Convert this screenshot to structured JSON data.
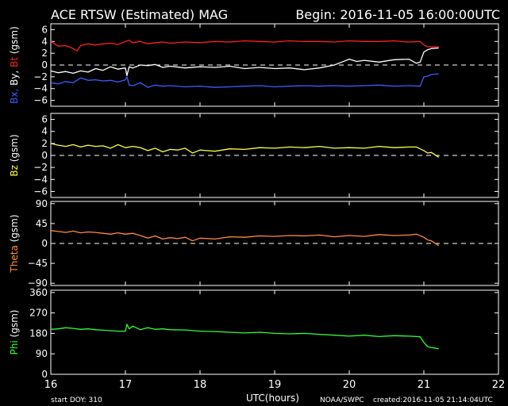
{
  "header": {
    "title": "ACE RTSW (Estimated) MAG",
    "begin": "Begin: 2016-11-05 16:00:00UTC"
  },
  "footer": {
    "start_doy": "start DOY:  310",
    "xlabel": "UTC(hours)",
    "credit": "NOAA/SWPC",
    "created": "created:2016-11-05 21:14:04UTC"
  },
  "x_axis": {
    "range": [
      16,
      22
    ],
    "ticks": [
      16,
      17,
      18,
      19,
      20,
      21,
      22
    ]
  },
  "colors": {
    "background": "#000000",
    "frame": "#ffffff",
    "bx": "#3b5bff",
    "by": "#ffffff",
    "bt": "#ff2020",
    "bz": "#ffff40",
    "theta": "#ff8c3c",
    "phi": "#30ff30"
  },
  "panels": [
    {
      "id": "b",
      "ylabel_parts": [
        {
          "text": "Bx,",
          "color": "#3b5bff"
        },
        {
          "text": " By,",
          "color": "#ffffff"
        },
        {
          "text": " Bt",
          "color": "#ff2020"
        },
        {
          "text": " (gsm)",
          "color": "#ffffff"
        }
      ],
      "ylim": [
        -7,
        7
      ],
      "yticks": [
        6,
        4,
        2,
        0,
        -2,
        -4,
        -6
      ],
      "zero_line": true
    },
    {
      "id": "bz",
      "ylabel_parts": [
        {
          "text": "Bz",
          "color": "#ffff40"
        },
        {
          "text": "  (gsm)",
          "color": "#ffffff"
        }
      ],
      "ylim": [
        -7,
        7
      ],
      "yticks": [
        6,
        4,
        2,
        0,
        -2,
        -4,
        -6
      ],
      "zero_line": true
    },
    {
      "id": "theta",
      "ylabel_parts": [
        {
          "text": "Theta",
          "color": "#ff8c3c"
        },
        {
          "text": "  (gsm)",
          "color": "#ffffff"
        }
      ],
      "ylim": [
        -95,
        95
      ],
      "yticks": [
        90,
        45,
        0,
        -45,
        -90
      ],
      "zero_line": true
    },
    {
      "id": "phi",
      "ylabel_parts": [
        {
          "text": "Phi",
          "color": "#30ff30"
        },
        {
          "text": "  (gsm)",
          "color": "#ffffff"
        }
      ],
      "ylim": [
        0,
        370
      ],
      "yticks": [
        360,
        270,
        180,
        90,
        0
      ],
      "zero_line": false
    }
  ],
  "chart_data": {
    "type": "line",
    "x_unit": "UTC hours",
    "xlim": [
      16,
      22
    ],
    "series": [
      {
        "name": "Bt",
        "panel": "b",
        "color": "#ff2020",
        "x": [
          16.0,
          16.1,
          16.2,
          16.3,
          16.35,
          16.4,
          16.5,
          16.6,
          16.7,
          16.8,
          16.9,
          17.0,
          17.05,
          17.1,
          17.2,
          17.3,
          17.4,
          17.5,
          17.6,
          17.8,
          18.0,
          18.2,
          18.4,
          18.6,
          18.8,
          19.0,
          19.2,
          19.4,
          19.6,
          19.8,
          20.0,
          20.2,
          20.4,
          20.6,
          20.8,
          20.95,
          21.0,
          21.05,
          21.1,
          21.2
        ],
        "y": [
          4.0,
          3.2,
          3.3,
          2.8,
          2.4,
          3.3,
          3.6,
          3.4,
          3.6,
          3.7,
          3.5,
          4.0,
          4.2,
          3.8,
          4.0,
          3.6,
          3.8,
          3.9,
          3.7,
          3.9,
          3.8,
          4.0,
          3.9,
          4.1,
          4.0,
          3.9,
          4.1,
          4.0,
          4.0,
          3.9,
          4.1,
          4.0,
          4.0,
          4.1,
          3.9,
          4.0,
          3.4,
          3.1,
          3.1,
          3.1
        ]
      },
      {
        "name": "By",
        "panel": "b",
        "color": "#ffffff",
        "x": [
          16.0,
          16.1,
          16.2,
          16.3,
          16.4,
          16.5,
          16.6,
          16.7,
          16.8,
          16.9,
          17.0,
          17.02,
          17.05,
          17.1,
          17.2,
          17.3,
          17.4,
          17.5,
          17.6,
          17.8,
          18.0,
          18.2,
          18.4,
          18.6,
          18.8,
          19.0,
          19.2,
          19.4,
          19.6,
          19.8,
          19.9,
          20.0,
          20.1,
          20.2,
          20.4,
          20.6,
          20.8,
          20.9,
          20.95,
          21.0,
          21.05,
          21.1,
          21.2
        ],
        "y": [
          -1.0,
          -1.3,
          -1.1,
          -1.4,
          -1.0,
          -1.2,
          -0.6,
          -0.9,
          -0.3,
          -0.7,
          -0.5,
          -1.8,
          -0.3,
          -0.5,
          0.0,
          -0.1,
          0.1,
          -0.4,
          -0.2,
          -0.5,
          -0.3,
          -0.4,
          -0.2,
          -0.6,
          -0.4,
          -0.6,
          -0.5,
          -0.8,
          -0.5,
          0.0,
          0.5,
          1.0,
          0.6,
          0.8,
          0.5,
          0.9,
          1.0,
          0.3,
          0.5,
          2.2,
          2.6,
          2.8,
          2.9
        ]
      },
      {
        "name": "Bx",
        "panel": "b",
        "color": "#3b5bff",
        "x": [
          16.0,
          16.1,
          16.2,
          16.3,
          16.4,
          16.5,
          16.6,
          16.7,
          16.8,
          16.9,
          17.0,
          17.02,
          17.05,
          17.1,
          17.2,
          17.3,
          17.4,
          17.5,
          17.6,
          17.8,
          18.0,
          18.2,
          18.4,
          18.6,
          18.8,
          19.0,
          19.2,
          19.4,
          19.6,
          19.8,
          20.0,
          20.2,
          20.4,
          20.6,
          20.8,
          20.95,
          21.0,
          21.05,
          21.1,
          21.2
        ],
        "y": [
          -3.0,
          -3.2,
          -2.8,
          -3.0,
          -2.2,
          -2.6,
          -2.5,
          -2.7,
          -2.6,
          -2.9,
          -2.5,
          -2.0,
          -3.4,
          -3.5,
          -3.0,
          -3.8,
          -3.4,
          -3.6,
          -3.5,
          -3.7,
          -3.6,
          -3.8,
          -3.7,
          -3.6,
          -3.5,
          -3.7,
          -3.6,
          -3.5,
          -3.6,
          -3.5,
          -3.6,
          -3.5,
          -3.4,
          -3.6,
          -3.5,
          -3.6,
          -2.0,
          -1.9,
          -1.6,
          -1.5
        ]
      },
      {
        "name": "Bz",
        "panel": "bz",
        "color": "#ffff40",
        "x": [
          16.0,
          16.1,
          16.2,
          16.3,
          16.4,
          16.5,
          16.6,
          16.7,
          16.8,
          16.9,
          17.0,
          17.1,
          17.2,
          17.3,
          17.4,
          17.5,
          17.6,
          17.7,
          17.8,
          17.9,
          18.0,
          18.2,
          18.4,
          18.6,
          18.8,
          19.0,
          19.2,
          19.4,
          19.6,
          19.8,
          20.0,
          20.2,
          20.4,
          20.6,
          20.8,
          20.9,
          21.0,
          21.05,
          21.1,
          21.2
        ],
        "y": [
          2.0,
          1.7,
          1.5,
          1.8,
          1.4,
          1.7,
          1.5,
          1.6,
          1.2,
          1.8,
          1.3,
          1.5,
          1.3,
          0.8,
          1.2,
          0.6,
          1.0,
          0.9,
          1.2,
          0.4,
          0.9,
          0.7,
          1.1,
          1.0,
          1.3,
          1.2,
          1.4,
          1.3,
          1.5,
          1.2,
          1.3,
          1.2,
          1.5,
          1.3,
          1.4,
          1.4,
          0.8,
          0.4,
          0.5,
          -0.3
        ]
      },
      {
        "name": "Theta",
        "panel": "theta",
        "color": "#ff8c3c",
        "x": [
          16.0,
          16.1,
          16.2,
          16.3,
          16.4,
          16.5,
          16.6,
          16.7,
          16.8,
          16.9,
          17.0,
          17.1,
          17.2,
          17.3,
          17.4,
          17.5,
          17.6,
          17.7,
          17.8,
          17.9,
          18.0,
          18.2,
          18.4,
          18.6,
          18.8,
          19.0,
          19.2,
          19.4,
          19.6,
          19.8,
          20.0,
          20.2,
          20.4,
          20.6,
          20.8,
          20.9,
          21.0,
          21.05,
          21.1,
          21.2
        ],
        "y": [
          29,
          27,
          25,
          28,
          24,
          26,
          25,
          23,
          21,
          24,
          21,
          23,
          18,
          12,
          17,
          10,
          13,
          11,
          14,
          6,
          12,
          10,
          15,
          14,
          17,
          16,
          18,
          17,
          19,
          15,
          18,
          16,
          20,
          18,
          19,
          21,
          14,
          8,
          6,
          -5
        ]
      },
      {
        "name": "Phi",
        "panel": "phi",
        "color": "#30ff30",
        "x": [
          16.0,
          16.1,
          16.2,
          16.3,
          16.4,
          16.5,
          16.6,
          16.7,
          16.8,
          16.9,
          17.0,
          17.02,
          17.05,
          17.1,
          17.2,
          17.3,
          17.4,
          17.5,
          17.6,
          17.8,
          18.0,
          18.2,
          18.4,
          18.6,
          18.8,
          19.0,
          19.2,
          19.4,
          19.6,
          19.8,
          20.0,
          20.2,
          20.4,
          20.6,
          20.8,
          20.95,
          21.0,
          21.05,
          21.1,
          21.2
        ],
        "y": [
          198,
          200,
          205,
          202,
          198,
          200,
          196,
          194,
          192,
          190,
          190,
          220,
          200,
          212,
          196,
          205,
          198,
          200,
          196,
          195,
          190,
          188,
          185,
          182,
          185,
          180,
          178,
          180,
          176,
          172,
          168,
          172,
          166,
          170,
          168,
          165,
          140,
          122,
          118,
          112
        ]
      }
    ]
  }
}
